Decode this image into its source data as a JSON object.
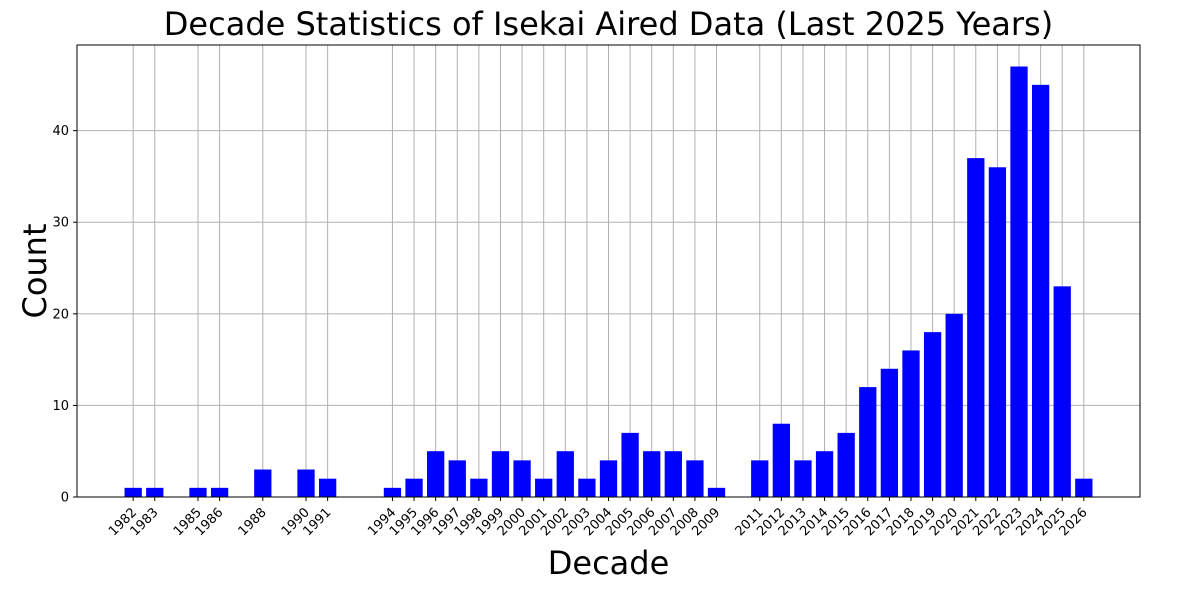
{
  "chart_data": {
    "type": "bar",
    "title": "Decade Statistics of Isekai Aired Data (Last 2025 Years)",
    "xlabel": "Decade",
    "ylabel": "Count",
    "categories": [
      "1982",
      "1983",
      "1985",
      "1986",
      "1988",
      "1990",
      "1991",
      "1994",
      "1995",
      "1996",
      "1997",
      "1998",
      "1999",
      "2000",
      "2001",
      "2002",
      "2003",
      "2004",
      "2005",
      "2006",
      "2007",
      "2008",
      "2009",
      "2011",
      "2012",
      "2013",
      "2014",
      "2015",
      "2016",
      "2017",
      "2018",
      "2019",
      "2020",
      "2021",
      "2022",
      "2023",
      "2024",
      "2025",
      "2026"
    ],
    "values": [
      1,
      1,
      1,
      1,
      3,
      3,
      2,
      1,
      2,
      5,
      4,
      2,
      5,
      4,
      2,
      5,
      2,
      4,
      7,
      5,
      5,
      4,
      1,
      4,
      8,
      4,
      5,
      7,
      12,
      14,
      16,
      18,
      20,
      37,
      36,
      47,
      45,
      23,
      2
    ],
    "ylim": [
      0,
      49.35
    ],
    "xlim": [
      1979.4,
      2028.6
    ],
    "yticks": [
      0,
      10,
      20,
      30,
      40
    ],
    "grid": true,
    "bar_color": "#0000ff",
    "legend": "none"
  }
}
